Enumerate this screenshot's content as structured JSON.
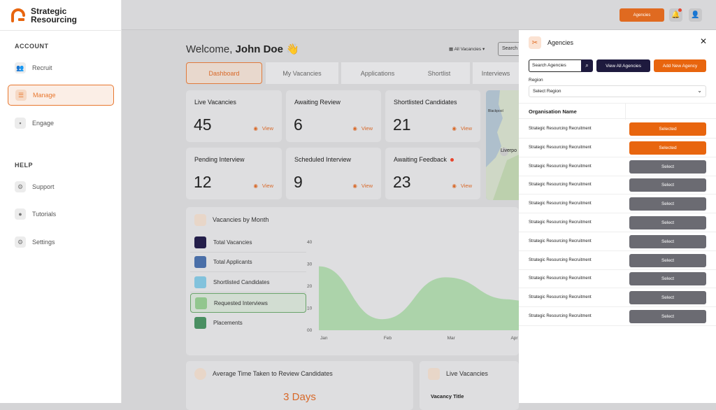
{
  "brand": {
    "line1": "Strategic",
    "line2": "Resourcing"
  },
  "sidebar": {
    "account_label": "ACCOUNT",
    "help_label": "HELP",
    "items": [
      {
        "label": "Recruit",
        "icon": "people-icon"
      },
      {
        "label": "Manage",
        "icon": "list-icon"
      },
      {
        "label": "Engage",
        "icon": "chat-icon"
      },
      {
        "label": "Support",
        "icon": "support-icon"
      },
      {
        "label": "Tutorials",
        "icon": "lightbulb-icon"
      },
      {
        "label": "Settings",
        "icon": "gear-icon"
      }
    ]
  },
  "topbar": {
    "agencies_label": "Agencies"
  },
  "welcome": {
    "prefix": "Welcome,",
    "name": "John Doe",
    "emoji": "👋"
  },
  "filter": {
    "all_vacancies": "All Vacancies",
    "search_label": "Search"
  },
  "tabs": [
    "Dashboard",
    "My Vacancies",
    "Applications",
    "Shortlist",
    "Interviews"
  ],
  "stats": [
    {
      "label": "Live Vacancies",
      "value": "45",
      "view": "View"
    },
    {
      "label": "Awaiting Review",
      "value": "6",
      "view": "View"
    },
    {
      "label": "Shortlisted Candidates",
      "value": "21",
      "view": "View"
    },
    {
      "label": "Pending Interview",
      "value": "12",
      "view": "View"
    },
    {
      "label": "Scheduled Interview",
      "value": "9",
      "view": "View"
    },
    {
      "label": "Awaiting Feedback",
      "value": "23",
      "view": "View"
    }
  ],
  "map": {
    "labels": [
      "Blackpool",
      "Liverpo"
    ]
  },
  "vacancies_by_month": {
    "title": "Vacancies by Month",
    "legend": [
      {
        "label": "Total Vacancies",
        "color": "#241e4a"
      },
      {
        "label": "Total Applicants",
        "color": "#4a6fa8"
      },
      {
        "label": "Shortlisted Candidates",
        "color": "#82c2dc"
      },
      {
        "label": "Requested Interviews",
        "color": "#92c68e"
      },
      {
        "label": "Placements",
        "color": "#4a8f62"
      }
    ]
  },
  "chart_data": {
    "type": "area",
    "x": [
      "Jan",
      "Feb",
      "Mar",
      "Apr"
    ],
    "series": [
      {
        "name": "Requested Interviews",
        "values": [
          29,
          5,
          24,
          14
        ]
      }
    ],
    "y_ticks": [
      "40",
      "30",
      "20",
      "10",
      "00"
    ],
    "ylim": [
      0,
      40
    ],
    "color": "#9fcf9c"
  },
  "avg_time": {
    "title": "Average Time Taken to Review Candidates",
    "value": "3 Days"
  },
  "live_vacancies_card": {
    "title": "Live Vacancies",
    "column": "Vacancy Title"
  },
  "agencies_panel": {
    "title": "Agencies",
    "search_placeholder": "Search Agencies",
    "view_all": "View All Agencies",
    "add_new": "Add New Agency",
    "region_label": "Region",
    "region_value": "Select Region",
    "column_header": "Organisation Name",
    "rows": [
      {
        "name": "Strategic Resourcing Recruitment",
        "action": "Selected",
        "selected": true
      },
      {
        "name": "Strategic Resourcing Recruitment",
        "action": "Selected",
        "selected": true
      },
      {
        "name": "Strategic Resourcing Recruitment",
        "action": "Select",
        "selected": false
      },
      {
        "name": "Strategic Resourcing Recruitment",
        "action": "Select",
        "selected": false
      },
      {
        "name": "Strategic Resourcing Recruitment",
        "action": "Select",
        "selected": false
      },
      {
        "name": "Strategic Resourcing Recruitment",
        "action": "Select",
        "selected": false
      },
      {
        "name": "Strategic Resourcing Recruitment",
        "action": "Select",
        "selected": false
      },
      {
        "name": "Strategic Resourcing Recruitment",
        "action": "Select",
        "selected": false
      },
      {
        "name": "Strategic Resourcing Recruitment",
        "action": "Select",
        "selected": false
      },
      {
        "name": "Strategic Resourcing Recruitment",
        "action": "Select",
        "selected": false
      },
      {
        "name": "Strategic Resourcing Recruitment",
        "action": "Select",
        "selected": false
      }
    ]
  }
}
